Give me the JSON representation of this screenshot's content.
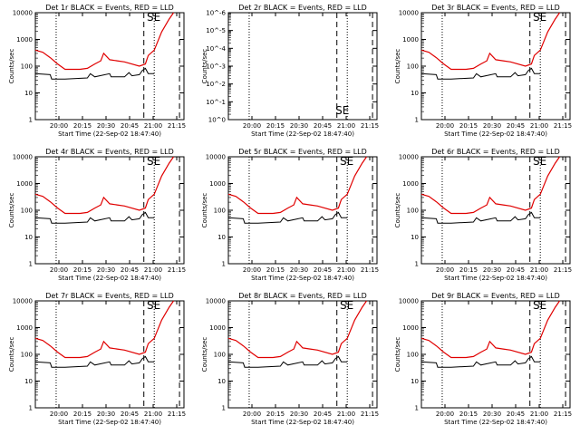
{
  "chart_data": [
    {
      "type": "line",
      "title": "Det 1r BLACK = Events, RED = LLD",
      "xlabel": "Start Time (22-Sep-02 18:47:40)",
      "ylabel": "Counts/sec",
      "y_scale": "log",
      "y_ticks": [
        "1",
        "10",
        "100",
        "1000",
        "10000"
      ],
      "ylim": [
        1,
        10000
      ],
      "x_ticks": [
        "20:00",
        "20:15",
        "20:30",
        "20:45",
        "21:00",
        "21:15"
      ],
      "annotation": "SE",
      "has_data": true,
      "line_colors": {
        "events": "#000000",
        "lld": "#e00000"
      }
    },
    {
      "type": "line",
      "title": "Det 2r BLACK = Events, RED = LLD",
      "xlabel": "Start Time (22-Sep-02 18:47:40)",
      "ylabel": "Counts/sec",
      "y_scale": "log",
      "y_ticks": [
        "10^0",
        "10^-1",
        "10^-2",
        "10^-3",
        "10^-4",
        "10^-5",
        "10^-6"
      ],
      "ylim": [
        1,
        1e-06
      ],
      "x_ticks": [
        "20:00",
        "20:15",
        "20:30",
        "20:45",
        "21:00",
        "21:15"
      ],
      "annotation": "SE",
      "has_data": false,
      "line_colors": {
        "events": "#000000",
        "lld": "#e00000"
      }
    },
    {
      "type": "line",
      "title": "Det 3r BLACK = Events, RED = LLD",
      "xlabel": "Start Time (22-Sep-02 18:47:40)",
      "ylabel": "Counts/sec",
      "y_scale": "log",
      "y_ticks": [
        "1",
        "10",
        "100",
        "1000",
        "10000"
      ],
      "ylim": [
        1,
        10000
      ],
      "x_ticks": [
        "20:00",
        "20:15",
        "20:30",
        "20:45",
        "21:00",
        "21:15"
      ],
      "annotation": "SE",
      "has_data": true,
      "line_colors": {
        "events": "#000000",
        "lld": "#e00000"
      }
    },
    {
      "type": "line",
      "title": "Det 4r BLACK = Events, RED = LLD",
      "xlabel": "Start Time (22-Sep-02 18:47:40)",
      "ylabel": "Counts/sec",
      "y_scale": "log",
      "y_ticks": [
        "1",
        "10",
        "100",
        "1000",
        "10000"
      ],
      "ylim": [
        1,
        10000
      ],
      "x_ticks": [
        "20:00",
        "20:15",
        "20:30",
        "20:45",
        "21:00",
        "21:15"
      ],
      "annotation": "SE",
      "has_data": true,
      "line_colors": {
        "events": "#000000",
        "lld": "#e00000"
      }
    },
    {
      "type": "line",
      "title": "Det 5r BLACK = Events, RED = LLD",
      "xlabel": "Start Time (22-Sep-02 18:47:40)",
      "ylabel": "Counts/sec",
      "y_scale": "log",
      "y_ticks": [
        "1",
        "10",
        "100",
        "1000",
        "10000"
      ],
      "ylim": [
        1,
        10000
      ],
      "x_ticks": [
        "20:00",
        "20:15",
        "20:30",
        "20:45",
        "21:00",
        "21:15"
      ],
      "annotation": "SE",
      "has_data": true,
      "line_colors": {
        "events": "#000000",
        "lld": "#e00000"
      }
    },
    {
      "type": "line",
      "title": "Det 6r BLACK = Events, RED = LLD",
      "xlabel": "Start Time (22-Sep-02 18:47:40)",
      "ylabel": "Counts/sec",
      "y_scale": "log",
      "y_ticks": [
        "1",
        "10",
        "100",
        "1000",
        "10000"
      ],
      "ylim": [
        1,
        10000
      ],
      "x_ticks": [
        "20:00",
        "20:15",
        "20:30",
        "20:45",
        "21:00",
        "21:15"
      ],
      "annotation": "SE",
      "has_data": true,
      "line_colors": {
        "events": "#000000",
        "lld": "#e00000"
      }
    },
    {
      "type": "line",
      "title": "Det 7r BLACK = Events, RED = LLD",
      "xlabel": "Start Time (22-Sep-02 18:47:40)",
      "ylabel": "Counts/sec",
      "y_scale": "log",
      "y_ticks": [
        "1",
        "10",
        "100",
        "1000",
        "10000"
      ],
      "ylim": [
        1,
        10000
      ],
      "x_ticks": [
        "20:00",
        "20:15",
        "20:30",
        "20:45",
        "21:00",
        "21:15"
      ],
      "annotation": "SE",
      "has_data": true,
      "line_colors": {
        "events": "#000000",
        "lld": "#e00000"
      }
    },
    {
      "type": "line",
      "title": "Det 8r BLACK = Events, RED = LLD",
      "xlabel": "Start Time (22-Sep-02 18:47:40)",
      "ylabel": "Counts/sec",
      "y_scale": "log",
      "y_ticks": [
        "1",
        "10",
        "100",
        "1000",
        "10000"
      ],
      "ylim": [
        1,
        10000
      ],
      "x_ticks": [
        "20:00",
        "20:15",
        "20:30",
        "20:45",
        "21:00",
        "21:15"
      ],
      "annotation": "SE",
      "has_data": true,
      "line_colors": {
        "events": "#000000",
        "lld": "#e00000"
      }
    },
    {
      "type": "line",
      "title": "Det 9r BLACK = Events, RED = LLD",
      "xlabel": "Start Time (22-Sep-02 18:47:40)",
      "ylabel": "Counts/sec",
      "y_scale": "log",
      "y_ticks": [
        "1",
        "10",
        "100",
        "1000",
        "10000"
      ],
      "ylim": [
        1,
        10000
      ],
      "x_ticks": [
        "20:00",
        "20:15",
        "20:30",
        "20:45",
        "21:00",
        "21:15"
      ],
      "annotation": "SE",
      "has_data": true,
      "line_colors": {
        "events": "#000000",
        "lld": "#e00000"
      }
    }
  ]
}
